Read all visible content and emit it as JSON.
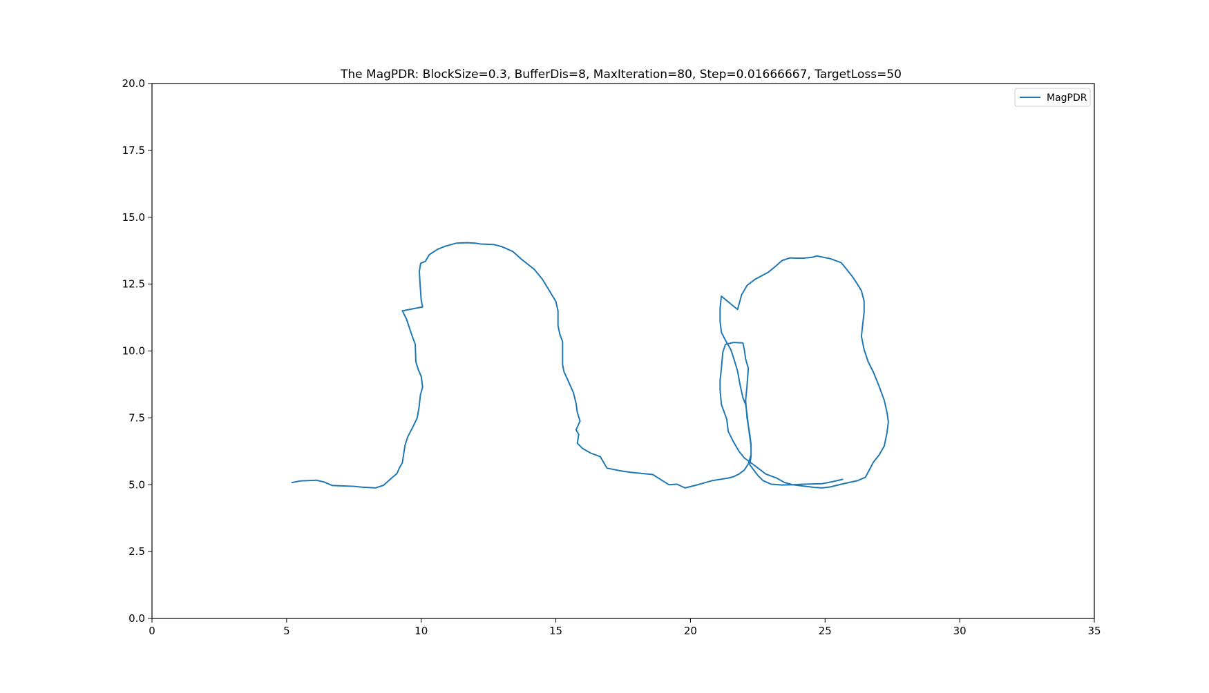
{
  "chart_data": {
    "type": "line",
    "title": "The MagPDR: BlockSize=0.3, BufferDis=8, MaxIteration=80, Step=0.01666667, TargetLoss=50",
    "xlabel": "",
    "ylabel": "",
    "xlim": [
      0,
      35
    ],
    "ylim": [
      0,
      20
    ],
    "x_ticks": [
      0,
      5,
      10,
      15,
      20,
      25,
      30,
      35
    ],
    "x_tick_labels": [
      "0",
      "5",
      "10",
      "15",
      "20",
      "25",
      "30",
      "35"
    ],
    "y_ticks": [
      0,
      2.5,
      5,
      7.5,
      10,
      12.5,
      15,
      17.5,
      20
    ],
    "y_tick_labels": [
      "0.0",
      "2.5",
      "5.0",
      "7.5",
      "10.0",
      "12.5",
      "15.0",
      "17.5",
      "20.0"
    ],
    "grid": false,
    "legend_position": "top-right",
    "series": [
      {
        "name": "MagPDR",
        "color": "#1f77b4",
        "points": [
          [
            5.2,
            5.08
          ],
          [
            5.5,
            5.14
          ],
          [
            6.1,
            5.17
          ],
          [
            6.4,
            5.1
          ],
          [
            6.7,
            4.97
          ],
          [
            7.5,
            4.94
          ],
          [
            7.8,
            4.91
          ],
          [
            8.3,
            4.88
          ],
          [
            8.6,
            4.98
          ],
          [
            8.9,
            5.25
          ],
          [
            9.1,
            5.42
          ],
          [
            9.2,
            5.65
          ],
          [
            9.3,
            5.82
          ],
          [
            9.4,
            6.48
          ],
          [
            9.5,
            6.79
          ],
          [
            9.7,
            7.18
          ],
          [
            9.85,
            7.5
          ],
          [
            9.92,
            7.9
          ],
          [
            9.97,
            8.35
          ],
          [
            10.05,
            8.65
          ],
          [
            10.0,
            9.05
          ],
          [
            9.9,
            9.28
          ],
          [
            9.8,
            9.6
          ],
          [
            9.78,
            10.25
          ],
          [
            9.65,
            10.6
          ],
          [
            9.45,
            11.2
          ],
          [
            9.3,
            11.5
          ],
          [
            10.05,
            11.65
          ],
          [
            10.0,
            11.9
          ],
          [
            9.95,
            12.6
          ],
          [
            9.93,
            12.98
          ],
          [
            9.98,
            13.28
          ],
          [
            10.15,
            13.35
          ],
          [
            10.3,
            13.6
          ],
          [
            10.6,
            13.8
          ],
          [
            10.9,
            13.92
          ],
          [
            11.3,
            14.03
          ],
          [
            11.7,
            14.05
          ],
          [
            12.0,
            14.03
          ],
          [
            12.2,
            14.0
          ],
          [
            12.7,
            13.98
          ],
          [
            13.0,
            13.9
          ],
          [
            13.4,
            13.72
          ],
          [
            13.7,
            13.45
          ],
          [
            14.2,
            13.05
          ],
          [
            14.5,
            12.68
          ],
          [
            14.7,
            12.35
          ],
          [
            15.0,
            11.85
          ],
          [
            15.08,
            11.5
          ],
          [
            15.08,
            10.95
          ],
          [
            15.15,
            10.62
          ],
          [
            15.25,
            10.35
          ],
          [
            15.25,
            9.5
          ],
          [
            15.3,
            9.23
          ],
          [
            15.45,
            8.9
          ],
          [
            15.65,
            8.45
          ],
          [
            15.75,
            8.05
          ],
          [
            15.8,
            7.7
          ],
          [
            15.9,
            7.38
          ],
          [
            15.75,
            7.05
          ],
          [
            15.85,
            6.88
          ],
          [
            15.8,
            6.55
          ],
          [
            16.0,
            6.35
          ],
          [
            16.3,
            6.18
          ],
          [
            16.65,
            6.05
          ],
          [
            16.9,
            5.62
          ],
          [
            17.4,
            5.52
          ],
          [
            17.8,
            5.46
          ],
          [
            18.6,
            5.38
          ],
          [
            19.2,
            5.0
          ],
          [
            19.5,
            5.02
          ],
          [
            19.8,
            4.88
          ],
          [
            20.2,
            4.98
          ],
          [
            20.8,
            5.15
          ],
          [
            21.1,
            5.2
          ],
          [
            21.4,
            5.25
          ],
          [
            21.6,
            5.3
          ],
          [
            21.8,
            5.4
          ],
          [
            22.0,
            5.55
          ],
          [
            22.15,
            5.78
          ],
          [
            22.25,
            6.12
          ],
          [
            22.25,
            6.5
          ],
          [
            22.2,
            6.9
          ],
          [
            22.1,
            7.5
          ],
          [
            22.05,
            8.15
          ],
          [
            22.1,
            8.7
          ],
          [
            22.15,
            9.35
          ],
          [
            22.05,
            9.7
          ],
          [
            22.0,
            10.05
          ],
          [
            21.95,
            10.3
          ],
          [
            21.6,
            10.32
          ],
          [
            21.3,
            10.25
          ],
          [
            21.2,
            9.95
          ],
          [
            21.15,
            9.35
          ],
          [
            21.1,
            8.9
          ],
          [
            21.1,
            8.55
          ],
          [
            21.15,
            8.0
          ],
          [
            21.35,
            7.45
          ],
          [
            21.4,
            7.0
          ],
          [
            21.6,
            6.6
          ],
          [
            21.8,
            6.25
          ],
          [
            22.0,
            6.0
          ],
          [
            22.3,
            5.78
          ],
          [
            22.6,
            5.55
          ],
          [
            22.8,
            5.4
          ],
          [
            23.2,
            5.25
          ],
          [
            23.5,
            5.08
          ],
          [
            23.8,
            5.0
          ],
          [
            24.2,
            4.95
          ],
          [
            24.6,
            4.9
          ],
          [
            24.9,
            4.88
          ],
          [
            25.2,
            4.92
          ],
          [
            25.6,
            5.02
          ],
          [
            26.2,
            5.15
          ],
          [
            26.5,
            5.28
          ],
          [
            26.8,
            5.85
          ],
          [
            27.0,
            6.1
          ],
          [
            27.2,
            6.45
          ],
          [
            27.3,
            6.95
          ],
          [
            27.35,
            7.35
          ],
          [
            27.3,
            7.7
          ],
          [
            27.2,
            8.15
          ],
          [
            27.0,
            8.7
          ],
          [
            26.8,
            9.2
          ],
          [
            26.6,
            9.6
          ],
          [
            26.45,
            10.05
          ],
          [
            26.35,
            10.55
          ],
          [
            26.4,
            11.0
          ],
          [
            26.45,
            11.45
          ],
          [
            26.45,
            11.85
          ],
          [
            26.35,
            12.25
          ],
          [
            26.2,
            12.5
          ],
          [
            26.0,
            12.8
          ],
          [
            25.8,
            13.05
          ],
          [
            25.6,
            13.3
          ],
          [
            25.2,
            13.45
          ],
          [
            24.7,
            13.55
          ],
          [
            24.5,
            13.5
          ],
          [
            24.2,
            13.47
          ],
          [
            23.9,
            13.47
          ],
          [
            23.7,
            13.48
          ],
          [
            23.4,
            13.38
          ],
          [
            23.2,
            13.2
          ],
          [
            22.9,
            12.95
          ],
          [
            22.4,
            12.68
          ],
          [
            22.1,
            12.45
          ],
          [
            21.9,
            12.1
          ],
          [
            21.75,
            11.55
          ],
          [
            21.15,
            12.05
          ],
          [
            21.1,
            11.6
          ],
          [
            21.1,
            11.1
          ],
          [
            21.15,
            10.7
          ],
          [
            21.3,
            10.4
          ],
          [
            21.5,
            10.05
          ],
          [
            21.6,
            9.75
          ],
          [
            21.75,
            9.25
          ],
          [
            21.85,
            8.7
          ],
          [
            21.95,
            8.25
          ],
          [
            22.05,
            8.0
          ],
          [
            22.1,
            7.65
          ],
          [
            22.15,
            7.2
          ],
          [
            22.2,
            6.8
          ],
          [
            22.25,
            6.45
          ],
          [
            22.25,
            6.05
          ],
          [
            22.2,
            5.75
          ],
          [
            22.35,
            5.55
          ],
          [
            22.5,
            5.35
          ],
          [
            22.7,
            5.15
          ],
          [
            23.0,
            5.02
          ],
          [
            23.4,
            4.99
          ],
          [
            23.8,
            5.0
          ],
          [
            24.2,
            5.02
          ],
          [
            24.9,
            5.04
          ],
          [
            25.3,
            5.12
          ],
          [
            25.65,
            5.2
          ]
        ]
      }
    ]
  }
}
